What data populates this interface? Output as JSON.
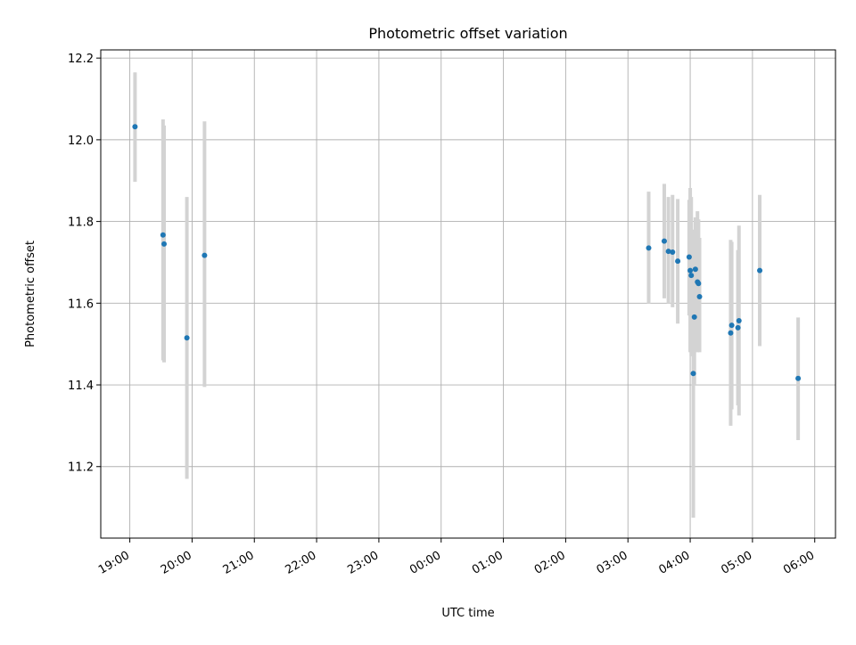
{
  "chart_data": {
    "type": "scatter",
    "title": "Photometric offset variation",
    "xlabel": "UTC time",
    "ylabel": "Photometric offset",
    "x_unit": "UTC (hh:mm)",
    "x_ticks": [
      "19:00",
      "20:00",
      "21:00",
      "22:00",
      "23:00",
      "00:00",
      "01:00",
      "02:00",
      "03:00",
      "04:00",
      "05:00",
      "06:00"
    ],
    "y_ticks": [
      11.2,
      11.4,
      11.6,
      11.8,
      12.0,
      12.2
    ],
    "xlim": [
      "18:32",
      "06:20"
    ],
    "ylim": [
      11.025,
      12.22
    ],
    "grid": true,
    "point_color": "#1f77b4",
    "errorbar_color": "#d3d3d3",
    "points": [
      {
        "t": "19:05",
        "y": 12.032,
        "lo": 11.897,
        "hi": 12.165
      },
      {
        "t": "19:32",
        "y": 11.767,
        "lo": 11.46,
        "hi": 12.05
      },
      {
        "t": "19:33",
        "y": 11.745,
        "lo": 11.455,
        "hi": 12.035
      },
      {
        "t": "19:55",
        "y": 11.515,
        "lo": 11.17,
        "hi": 11.86
      },
      {
        "t": "20:12",
        "y": 11.717,
        "lo": 11.395,
        "hi": 12.045
      },
      {
        "t": "03:20",
        "y": 11.735,
        "lo": 11.6,
        "hi": 11.873
      },
      {
        "t": "03:35",
        "y": 11.752,
        "lo": 11.612,
        "hi": 11.892
      },
      {
        "t": "03:39",
        "y": 11.727,
        "lo": 11.6,
        "hi": 11.86
      },
      {
        "t": "03:43",
        "y": 11.725,
        "lo": 11.59,
        "hi": 11.865
      },
      {
        "t": "03:48",
        "y": 11.703,
        "lo": 11.55,
        "hi": 11.855
      },
      {
        "t": "03:59",
        "y": 11.713,
        "lo": 11.57,
        "hi": 11.853
      },
      {
        "t": "04:00",
        "y": 11.68,
        "lo": 11.48,
        "hi": 11.882
      },
      {
        "t": "04:01",
        "y": 11.668,
        "lo": 11.47,
        "hi": 11.86
      },
      {
        "t": "04:03",
        "y": 11.428,
        "lo": 11.075,
        "hi": 11.78
      },
      {
        "t": "04:04",
        "y": 11.566,
        "lo": 11.4,
        "hi": 11.76
      },
      {
        "t": "04:05",
        "y": 11.683,
        "lo": 11.53,
        "hi": 11.81
      },
      {
        "t": "04:07",
        "y": 11.652,
        "lo": 11.48,
        "hi": 11.825
      },
      {
        "t": "04:08",
        "y": 11.648,
        "lo": 11.49,
        "hi": 11.805
      },
      {
        "t": "04:09",
        "y": 11.616,
        "lo": 11.48,
        "hi": 11.76
      },
      {
        "t": "04:39",
        "y": 11.527,
        "lo": 11.3,
        "hi": 11.755
      },
      {
        "t": "04:40",
        "y": 11.546,
        "lo": 11.34,
        "hi": 11.75
      },
      {
        "t": "04:46",
        "y": 11.54,
        "lo": 11.35,
        "hi": 11.73
      },
      {
        "t": "04:47",
        "y": 11.557,
        "lo": 11.325,
        "hi": 11.79
      },
      {
        "t": "05:07",
        "y": 11.68,
        "lo": 11.495,
        "hi": 11.865
      },
      {
        "t": "05:44",
        "y": 11.416,
        "lo": 11.265,
        "hi": 11.565
      }
    ]
  }
}
